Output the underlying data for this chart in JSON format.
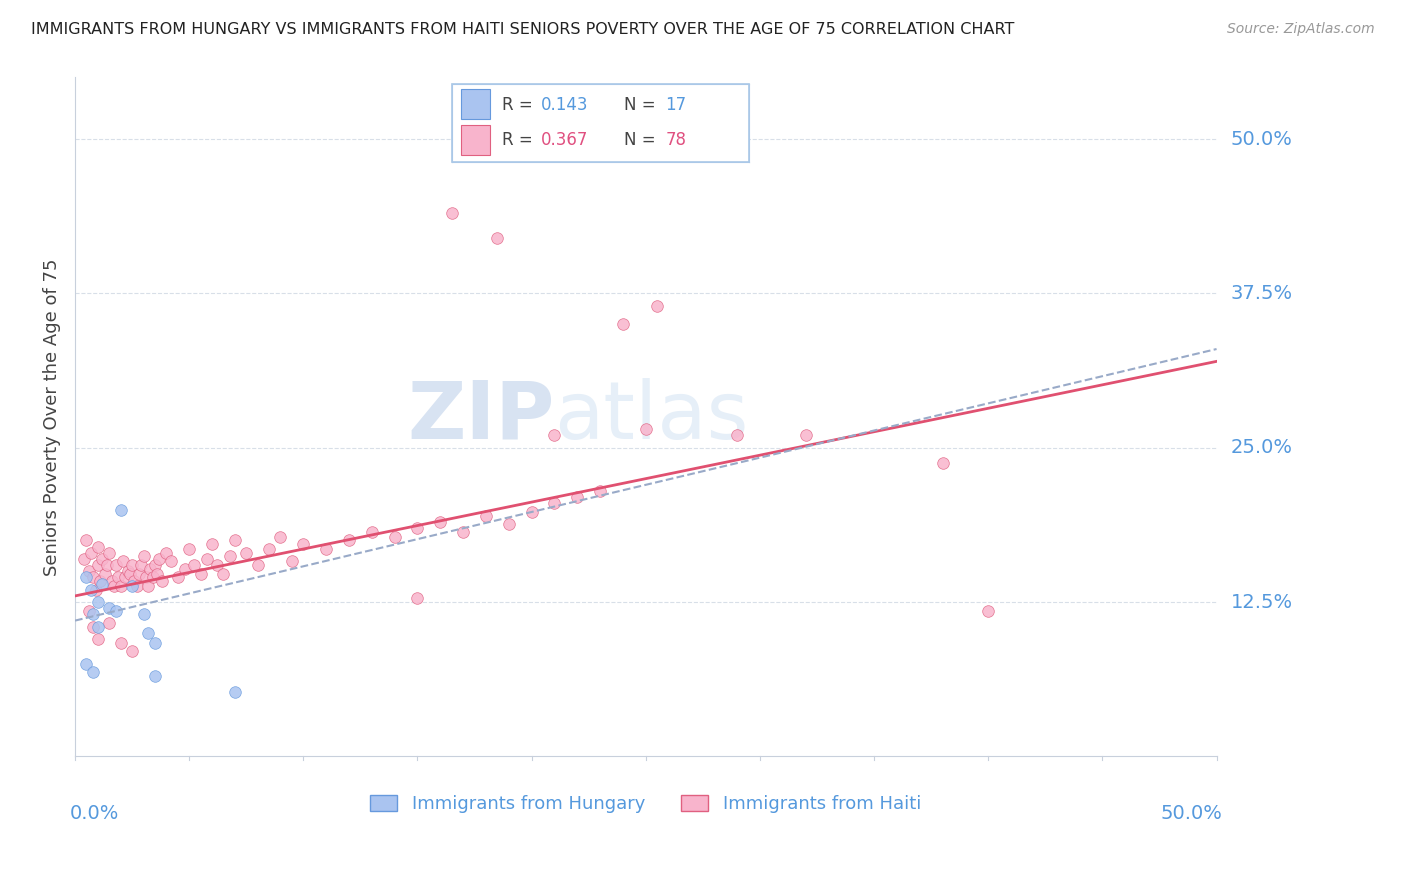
{
  "title": "IMMIGRANTS FROM HUNGARY VS IMMIGRANTS FROM HAITI SENIORS POVERTY OVER THE AGE OF 75 CORRELATION CHART",
  "source": "Source: ZipAtlas.com",
  "ylabel": "Seniors Poverty Over the Age of 75",
  "xlim": [
    0.0,
    0.5
  ],
  "ylim": [
    0.0,
    0.55
  ],
  "ytick_vals": [
    0.125,
    0.25,
    0.375,
    0.5
  ],
  "ytick_labels": [
    "12.5%",
    "25.0%",
    "37.5%",
    "50.0%"
  ],
  "hungary_color": "#aac4f0",
  "hungary_edge": "#6699dd",
  "haiti_color": "#f8b4cc",
  "haiti_edge": "#e06080",
  "hungary_line_color": "#3366cc",
  "haiti_line_color": "#e05070",
  "dashed_line_color": "#99aac8",
  "watermark_zip_color": "#b8cce8",
  "watermark_atlas_color": "#c8d8f0",
  "label_color": "#5599dd",
  "grid_color": "#d8dfe8",
  "hungary_points": [
    [
      0.005,
      0.145
    ],
    [
      0.007,
      0.135
    ],
    [
      0.008,
      0.115
    ],
    [
      0.01,
      0.125
    ],
    [
      0.01,
      0.105
    ],
    [
      0.012,
      0.14
    ],
    [
      0.015,
      0.12
    ],
    [
      0.018,
      0.118
    ],
    [
      0.02,
      0.2
    ],
    [
      0.025,
      0.138
    ],
    [
      0.03,
      0.115
    ],
    [
      0.032,
      0.1
    ],
    [
      0.035,
      0.092
    ],
    [
      0.005,
      0.075
    ],
    [
      0.008,
      0.068
    ],
    [
      0.035,
      0.065
    ],
    [
      0.07,
      0.052
    ]
  ],
  "haiti_points": [
    [
      0.004,
      0.16
    ],
    [
      0.005,
      0.175
    ],
    [
      0.006,
      0.15
    ],
    [
      0.007,
      0.165
    ],
    [
      0.008,
      0.145
    ],
    [
      0.009,
      0.135
    ],
    [
      0.01,
      0.17
    ],
    [
      0.01,
      0.155
    ],
    [
      0.011,
      0.142
    ],
    [
      0.012,
      0.16
    ],
    [
      0.013,
      0.148
    ],
    [
      0.014,
      0.155
    ],
    [
      0.015,
      0.165
    ],
    [
      0.016,
      0.142
    ],
    [
      0.017,
      0.138
    ],
    [
      0.018,
      0.155
    ],
    [
      0.019,
      0.145
    ],
    [
      0.02,
      0.138
    ],
    [
      0.021,
      0.158
    ],
    [
      0.022,
      0.145
    ],
    [
      0.023,
      0.15
    ],
    [
      0.024,
      0.148
    ],
    [
      0.025,
      0.155
    ],
    [
      0.026,
      0.142
    ],
    [
      0.027,
      0.138
    ],
    [
      0.028,
      0.148
    ],
    [
      0.029,
      0.155
    ],
    [
      0.03,
      0.162
    ],
    [
      0.031,
      0.145
    ],
    [
      0.032,
      0.138
    ],
    [
      0.033,
      0.152
    ],
    [
      0.034,
      0.145
    ],
    [
      0.035,
      0.155
    ],
    [
      0.036,
      0.148
    ],
    [
      0.037,
      0.16
    ],
    [
      0.038,
      0.142
    ],
    [
      0.04,
      0.165
    ],
    [
      0.042,
      0.158
    ],
    [
      0.045,
      0.145
    ],
    [
      0.048,
      0.152
    ],
    [
      0.05,
      0.168
    ],
    [
      0.052,
      0.155
    ],
    [
      0.055,
      0.148
    ],
    [
      0.058,
      0.16
    ],
    [
      0.06,
      0.172
    ],
    [
      0.062,
      0.155
    ],
    [
      0.065,
      0.148
    ],
    [
      0.068,
      0.162
    ],
    [
      0.07,
      0.175
    ],
    [
      0.075,
      0.165
    ],
    [
      0.08,
      0.155
    ],
    [
      0.085,
      0.168
    ],
    [
      0.09,
      0.178
    ],
    [
      0.095,
      0.158
    ],
    [
      0.1,
      0.172
    ],
    [
      0.11,
      0.168
    ],
    [
      0.12,
      0.175
    ],
    [
      0.13,
      0.182
    ],
    [
      0.14,
      0.178
    ],
    [
      0.15,
      0.185
    ],
    [
      0.16,
      0.19
    ],
    [
      0.17,
      0.182
    ],
    [
      0.18,
      0.195
    ],
    [
      0.19,
      0.188
    ],
    [
      0.2,
      0.198
    ],
    [
      0.21,
      0.205
    ],
    [
      0.22,
      0.21
    ],
    [
      0.23,
      0.215
    ],
    [
      0.006,
      0.118
    ],
    [
      0.008,
      0.105
    ],
    [
      0.01,
      0.095
    ],
    [
      0.015,
      0.108
    ],
    [
      0.02,
      0.092
    ],
    [
      0.025,
      0.085
    ],
    [
      0.15,
      0.128
    ],
    [
      0.4,
      0.118
    ],
    [
      0.21,
      0.26
    ],
    [
      0.25,
      0.265
    ]
  ],
  "haiti_outliers": [
    [
      0.165,
      0.44
    ],
    [
      0.185,
      0.42
    ],
    [
      0.24,
      0.35
    ],
    [
      0.255,
      0.365
    ],
    [
      0.29,
      0.26
    ],
    [
      0.32,
      0.26
    ],
    [
      0.38,
      0.238
    ]
  ]
}
